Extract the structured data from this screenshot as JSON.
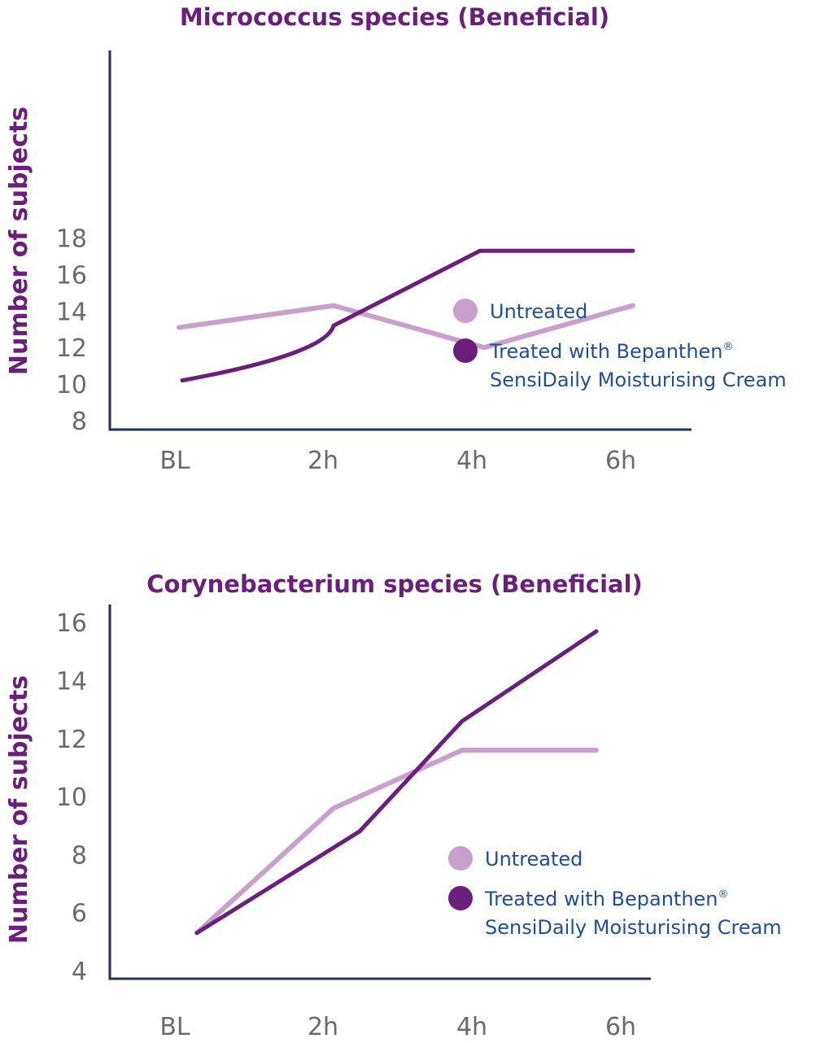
{
  "chart_data": [
    {
      "type": "line",
      "title": "Micrococcus species (Beneficial)",
      "xlabel": "",
      "ylabel": "Number of subjects",
      "categories": [
        "BL",
        "2h",
        "4h",
        "6h"
      ],
      "y_ticks": [
        "8",
        "10",
        "12",
        "14",
        "16",
        "18"
      ],
      "ylim": [
        8,
        18
      ],
      "grid": false,
      "legend_position": "center-right",
      "series": [
        {
          "name": "Untreated",
          "color": "#c9a0cb",
          "values": [
            13.1,
            14.3,
            12.0,
            14.3
          ]
        },
        {
          "name": "Treated with Bepanthen® SensiDaily Moisturising Cream",
          "color": "#6b1f7c",
          "values": [
            10.2,
            13.2,
            17.3,
            17.3
          ],
          "curved": true
        }
      ]
    },
    {
      "type": "line",
      "title": "Corynebacterium species (Beneficial)",
      "xlabel": "",
      "ylabel": "Number of subjects",
      "categories": [
        "BL",
        "2h",
        "4h",
        "6h"
      ],
      "y_ticks": [
        "4",
        "6",
        "8",
        "10",
        "12",
        "14",
        "16"
      ],
      "ylim": [
        4,
        16.5
      ],
      "grid": false,
      "legend_position": "bottom-right",
      "series": [
        {
          "name": "Untreated",
          "color": "#c9a0cb",
          "values": [
            5.3,
            9.6,
            11.6,
            11.6
          ]
        },
        {
          "name": "Treated with Bepanthen® SensiDaily Moisturising Cream",
          "color": "#6b1f7c",
          "values": [
            5.3,
            8.8,
            12.6,
            15.7
          ]
        }
      ]
    }
  ],
  "legend": {
    "untreated": "Untreated",
    "treated_line1": "Treated with Bepanthen",
    "treated_reg": "®",
    "treated_line2": "SensiDaily Moisturising Cream"
  }
}
